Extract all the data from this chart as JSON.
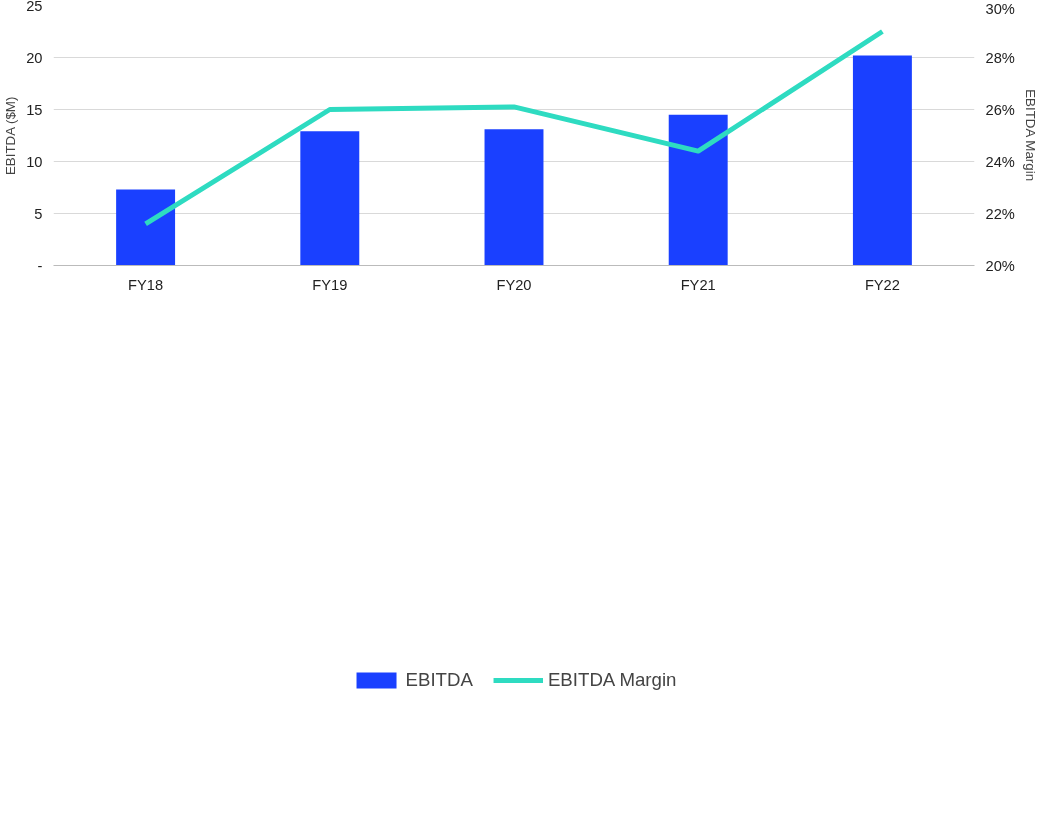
{
  "chart_data": {
    "type": "bar",
    "ylabel": "EBITDA ($M)",
    "y2label": "EBITDA Margin",
    "categories": [
      "FY18",
      "FY19",
      "FY20",
      "FY21",
      "FY22"
    ],
    "series": [
      {
        "name": "EBITDA",
        "color": "#1a40ff",
        "values": [
          7.3,
          12.9,
          13.1,
          14.5,
          20.2
        ]
      },
      {
        "name": "EBITDA Margin",
        "type": "line",
        "axis": "y2",
        "color": "#2edbc1",
        "values": [
          21.6,
          26.0,
          26.1,
          24.4,
          29.0
        ]
      }
    ],
    "ylim": [
      0,
      25
    ],
    "yticks": [
      {
        "value": 0,
        "label": "-"
      },
      5,
      10,
      15,
      20,
      25
    ],
    "y2lim": [
      20,
      30
    ],
    "y2ticks": [
      {
        "value": 20,
        "label": "20%"
      },
      {
        "value": 22,
        "label": "22%"
      },
      {
        "value": 24,
        "label": "24%"
      },
      {
        "value": 26,
        "label": "26%"
      },
      {
        "value": 28,
        "label": "28%"
      },
      {
        "value": 30,
        "label": "30%"
      }
    ],
    "grid": "y",
    "legend": "bottom",
    "marker": "none",
    "line_style": "solid"
  }
}
